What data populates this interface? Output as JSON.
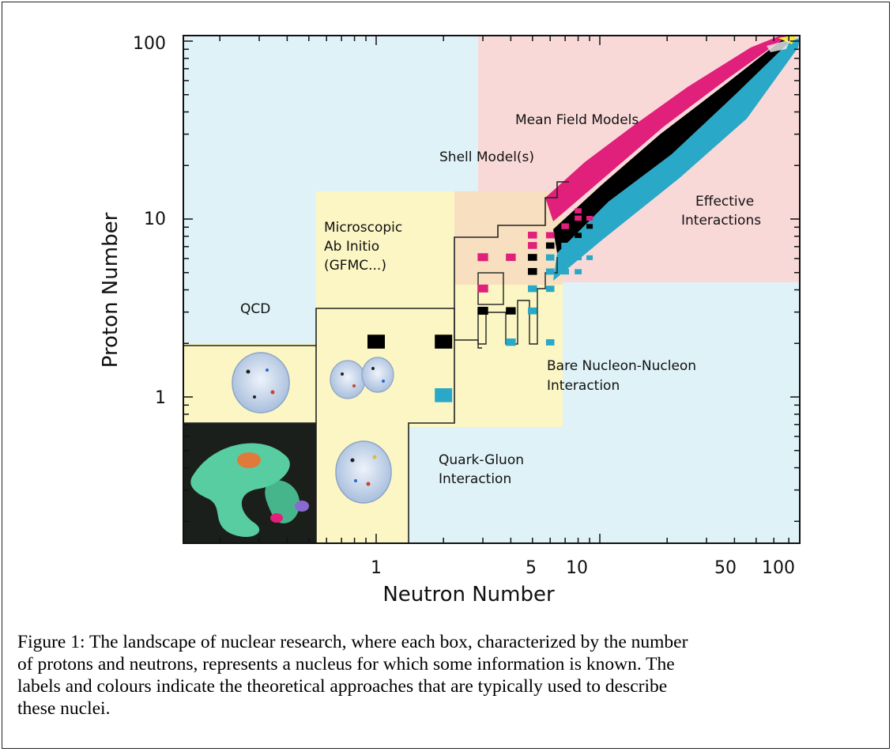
{
  "chart_data": {
    "type": "heatmap",
    "xlabel": "Neutron Number",
    "ylabel": "Proton Number",
    "x_scale": "log",
    "y_scale": "log",
    "x_tick_labels": [
      "1",
      "5",
      "10",
      "50",
      "100"
    ],
    "y_tick_labels": [
      "1",
      "10",
      "100"
    ],
    "region_labels": {
      "mean_field": "Mean Field Models",
      "shell": "Shell Model(s)",
      "effective": [
        "Effective",
        "Interactions"
      ],
      "ab_initio": [
        "Microscopic",
        "Ab Initio",
        "(GFMC...)"
      ],
      "qcd": "QCD",
      "bare_nn": [
        "Bare Nucleon-Nucleon",
        "Interaction"
      ],
      "quark_gluon": [
        "Quark-Gluon",
        "Interaction"
      ]
    },
    "colors": {
      "qcd_region": "#dff2f7",
      "ab_initio_region": "#fbf6c4",
      "mean_field_region": "#f9d8d8",
      "nucleus_black": "#000000",
      "nucleus_magenta": "#e0207a",
      "nucleus_cyan": "#29a8c8"
    },
    "light_nuclei": [
      {
        "n": 1,
        "z": 2,
        "color": "black"
      },
      {
        "n": 2,
        "z": 2,
        "color": "black"
      },
      {
        "n": 2,
        "z": 1,
        "color": "cyan"
      },
      {
        "n": 3,
        "z": 6,
        "color": "magenta"
      },
      {
        "n": 3,
        "z": 4,
        "color": "magenta"
      },
      {
        "n": 3,
        "z": 3,
        "color": "black"
      },
      {
        "n": 4,
        "z": 6,
        "color": "magenta"
      },
      {
        "n": 4,
        "z": 3,
        "color": "black"
      },
      {
        "n": 4,
        "z": 2,
        "color": "cyan"
      },
      {
        "n": 5,
        "z": 8,
        "color": "magenta"
      },
      {
        "n": 5,
        "z": 7,
        "color": "magenta"
      },
      {
        "n": 5,
        "z": 6,
        "color": "black"
      },
      {
        "n": 5,
        "z": 5,
        "color": "black"
      },
      {
        "n": 5,
        "z": 4,
        "color": "cyan"
      },
      {
        "n": 5,
        "z": 3,
        "color": "cyan"
      },
      {
        "n": 6,
        "z": 8,
        "color": "magenta"
      },
      {
        "n": 6,
        "z": 7,
        "color": "black"
      },
      {
        "n": 6,
        "z": 6,
        "color": "cyan"
      },
      {
        "n": 6,
        "z": 5,
        "color": "cyan"
      },
      {
        "n": 6,
        "z": 4,
        "color": "cyan"
      },
      {
        "n": 6,
        "z": 2,
        "color": "cyan"
      },
      {
        "n": 7,
        "z": 9,
        "color": "magenta"
      },
      {
        "n": 7,
        "z": 8,
        "color": "black"
      },
      {
        "n": 7,
        "z": 7,
        "color": "cyan"
      },
      {
        "n": 7,
        "z": 6,
        "color": "cyan"
      },
      {
        "n": 7,
        "z": 5,
        "color": "cyan"
      },
      {
        "n": 8,
        "z": 11,
        "color": "magenta"
      },
      {
        "n": 8,
        "z": 10,
        "color": "magenta"
      },
      {
        "n": 8,
        "z": 9,
        "color": "black"
      },
      {
        "n": 8,
        "z": 8,
        "color": "black"
      },
      {
        "n": 8,
        "z": 7,
        "color": "cyan"
      },
      {
        "n": 8,
        "z": 6,
        "color": "cyan"
      },
      {
        "n": 8,
        "z": 5,
        "color": "cyan"
      },
      {
        "n": 9,
        "z": 10,
        "color": "magenta"
      },
      {
        "n": 9,
        "z": 9,
        "color": "black"
      },
      {
        "n": 9,
        "z": 8,
        "color": "cyan"
      },
      {
        "n": 9,
        "z": 7,
        "color": "cyan"
      },
      {
        "n": 9,
        "z": 6,
        "color": "cyan"
      }
    ]
  },
  "caption": {
    "lines": [
      "Figure 1: The landscape of nuclear research, where each box, characterized by the number",
      "of protons and neutrons, represents a nucleus for which some information is known. The",
      "labels and colours indicate the theoretical approaches that are typically used to describe",
      "these nuclei."
    ]
  }
}
